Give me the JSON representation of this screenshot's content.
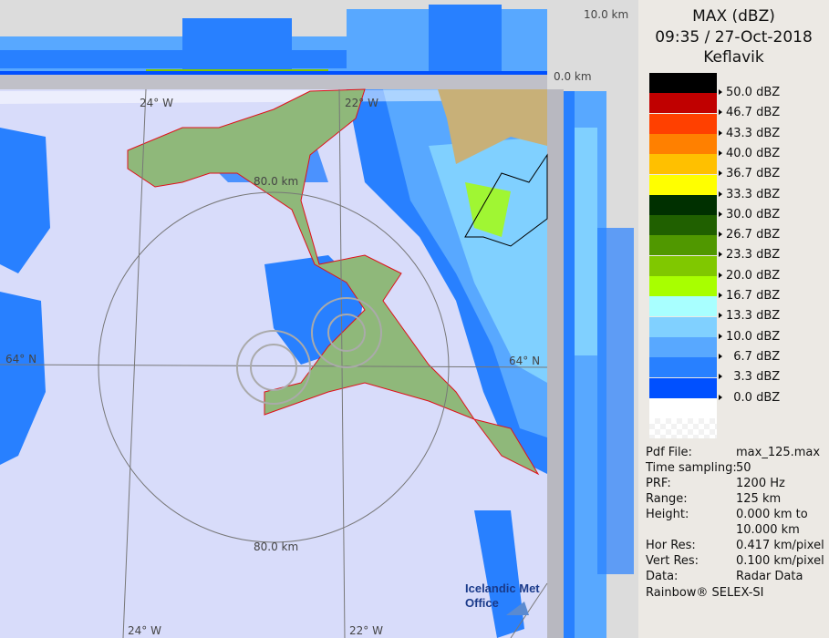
{
  "header": {
    "product": "MAX (dBZ)",
    "datetime": "09:35 / 27-Oct-2018",
    "site": "Keflavik"
  },
  "legend": [
    {
      "color": "#000000",
      "label": "50.0 dBZ"
    },
    {
      "color": "#c00000",
      "label": "46.7 dBZ"
    },
    {
      "color": "#ff4000",
      "label": "43.3 dBZ"
    },
    {
      "color": "#ff8000",
      "label": "40.0 dBZ"
    },
    {
      "color": "#ffc000",
      "label": "36.7 dBZ"
    },
    {
      "color": "#ffff00",
      "label": "33.3 dBZ"
    },
    {
      "color": "#003000",
      "label": "30.0 dBZ"
    },
    {
      "color": "#206000",
      "label": "26.7 dBZ"
    },
    {
      "color": "#509800",
      "label": "23.3 dBZ"
    },
    {
      "color": "#80c800",
      "label": "20.0 dBZ"
    },
    {
      "color": "#a8ff00",
      "label": "16.7 dBZ"
    },
    {
      "color": "#a8ffff",
      "label": "13.3 dBZ"
    },
    {
      "color": "#80d0ff",
      "label": "10.0 dBZ"
    },
    {
      "color": "#58a8ff",
      "label": "  6.7 dBZ"
    },
    {
      "color": "#2880ff",
      "label": "  3.3 dBZ"
    },
    {
      "color": "#0050ff",
      "label": "  0.0 dBZ"
    },
    {
      "color": "#ffffff",
      "label": ""
    }
  ],
  "info": [
    {
      "key": "Pdf File:",
      "value": "max_125.max"
    },
    {
      "key": "Time sampling:",
      "value": "50"
    },
    {
      "key": "PRF:",
      "value": "1200 Hz"
    },
    {
      "key": "Range:",
      "value": "125 km"
    },
    {
      "key": "Height:",
      "value": "0.000 km to"
    },
    {
      "key": "",
      "value": "10.000 km"
    },
    {
      "key": "Hor Res:",
      "value": "0.417 km/pixel"
    },
    {
      "key": "Vert Res:",
      "value": "0.100 km/pixel"
    },
    {
      "key": "Data:",
      "value": "Radar Data"
    }
  ],
  "footer": "Rainbow® SELEX-SI",
  "map": {
    "height_top": "10.0 km",
    "height_bottom": "0.0 km",
    "lon_labels": [
      "24° W",
      "22° W",
      "24° W",
      "22° W"
    ],
    "lat_labels": [
      "64° N",
      "64° N"
    ],
    "range_labels": [
      "80.0 km",
      "80.0 km"
    ],
    "logo_line1": "Icelandic Met",
    "logo_line2": "Office",
    "colors": {
      "background": "#d8dcfa",
      "land": "#8fb87a",
      "coast": "#e0101a"
    }
  }
}
